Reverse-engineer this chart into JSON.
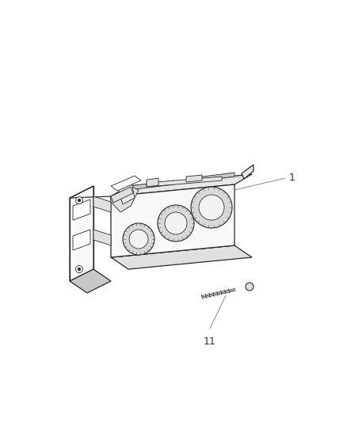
{
  "bg_color": "#ffffff",
  "line_color": "#2a2a2a",
  "line_color_light": "#888888",
  "fig_width": 4.38,
  "fig_height": 5.33,
  "dpi": 100,
  "label_1_text": "1",
  "label_11_text": "11",
  "label_color": "#333333",
  "label_fontsize": 9,
  "face_fill": "#f8f8f8",
  "top_fill": "#e8e8e8",
  "side_fill": "#e0e0e0",
  "knob_outer_fill": "#d8d8d8",
  "knob_inner_fill": "#f2f2f2",
  "dark_fill": "#c8c8c8"
}
